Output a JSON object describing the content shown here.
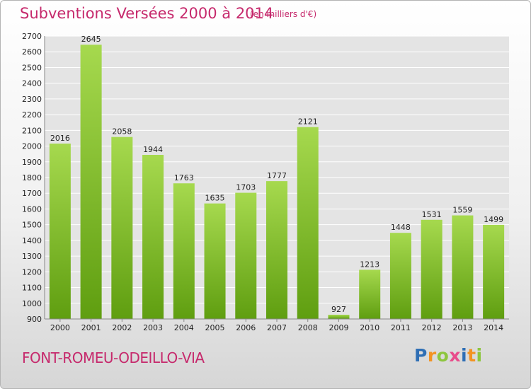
{
  "header": {
    "title": "Subventions Versées 2000 à 2014",
    "subtitle": "(en milliers d'€)"
  },
  "footer": {
    "commune": "FONT-ROMEU-ODEILLO-VIA",
    "logo_letters": [
      "P",
      "r",
      "o",
      "x",
      "i",
      "t",
      "i"
    ],
    "logo_colors": [
      "#2f6fb5",
      "#f39322",
      "#8dc63f",
      "#e84c8b",
      "#2f6fb5",
      "#f39322",
      "#8dc63f"
    ]
  },
  "colors": {
    "bar_top": "#a6d94e",
    "bar_bottom": "#5f9e10",
    "grid": "#ffffff",
    "plot_bg": "#e4e4e4"
  },
  "chart_data": {
    "type": "bar",
    "title": "Subventions Versées 2000 à 2014",
    "subtitle": "(en milliers d'€)",
    "xlabel": "",
    "ylabel": "",
    "categories": [
      "2000",
      "2001",
      "2002",
      "2003",
      "2004",
      "2005",
      "2006",
      "2007",
      "2008",
      "2009",
      "2010",
      "2011",
      "2012",
      "2013",
      "2014"
    ],
    "values": [
      2016,
      2645,
      2058,
      1944,
      1763,
      1635,
      1703,
      1777,
      2121,
      927,
      1213,
      1448,
      1531,
      1559,
      1499
    ],
    "ylim": [
      900,
      2700
    ],
    "yticks": [
      900,
      1000,
      1100,
      1200,
      1300,
      1400,
      1500,
      1600,
      1700,
      1800,
      1900,
      2000,
      2100,
      2200,
      2300,
      2400,
      2500,
      2600,
      2700
    ],
    "grid": true,
    "legend": "none"
  }
}
